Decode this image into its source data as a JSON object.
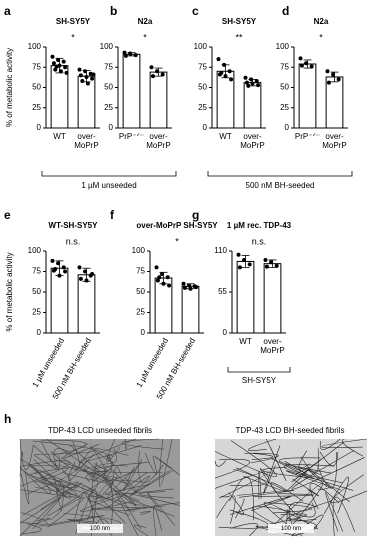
{
  "chart_data": [
    {
      "panel": "a",
      "type": "bar",
      "title": "SH-SY5Y",
      "ylabel": "% of metabolic activity",
      "significance": "*",
      "categories": [
        "WT",
        "over-MoPrP"
      ],
      "values": [
        77,
        64
      ],
      "errors": [
        9,
        7
      ],
      "points": [
        [
          88,
          84,
          82,
          80,
          77,
          75,
          72,
          70,
          68,
          76
        ],
        [
          72,
          70,
          67,
          65,
          63,
          61,
          58,
          55,
          66
        ]
      ],
      "ylim": [
        0,
        100
      ],
      "yticks": [
        0,
        25,
        50,
        75,
        100
      ]
    },
    {
      "panel": "b",
      "type": "bar",
      "title": "N2a",
      "significance": "*",
      "categories": [
        "PrP⁻ᐟ⁻",
        "over-MoPrP"
      ],
      "values": [
        91,
        69
      ],
      "errors": [
        2,
        5
      ],
      "points": [
        [
          93,
          92,
          90,
          89
        ],
        [
          75,
          70,
          66,
          64
        ]
      ],
      "ylim": [
        0,
        100
      ],
      "yticks": [
        0,
        25,
        50,
        75,
        100
      ]
    },
    {
      "panel": "c",
      "type": "bar",
      "title": "SH-SY5Y",
      "significance": "**",
      "categories": [
        "WT",
        "over-MoPrP"
      ],
      "values": [
        70,
        56
      ],
      "errors": [
        8,
        4
      ],
      "points": [
        [
          85,
          78,
          70,
          66,
          64,
          60,
          68
        ],
        [
          62,
          60,
          58,
          56,
          55,
          53,
          52
        ]
      ],
      "ylim": [
        0,
        100
      ],
      "yticks": [
        0,
        25,
        50,
        75,
        100
      ]
    },
    {
      "panel": "d",
      "type": "bar",
      "title": "N2a",
      "significance": "*",
      "categories": [
        "PrP⁻ᐟ⁻",
        "over-MoPrP"
      ],
      "values": [
        79,
        63
      ],
      "errors": [
        5,
        6
      ],
      "points": [
        [
          86,
          80,
          76,
          77
        ],
        [
          70,
          66,
          60,
          56
        ]
      ],
      "ylim": [
        0,
        100
      ],
      "yticks": [
        0,
        25,
        50,
        75,
        100
      ]
    },
    {
      "panel": "e",
      "type": "bar",
      "title": "WT-SH-SY5Y",
      "ylabel": "% of metabolic activity",
      "significance": "n.s.",
      "categories": [
        "1 µM unseeded",
        "500 nM BH-seeded"
      ],
      "values": [
        79,
        71
      ],
      "errors": [
        9,
        8
      ],
      "points": [
        [
          88,
          85,
          80,
          76,
          70,
          75,
          78
        ],
        [
          80,
          75,
          70,
          66,
          64,
          72
        ]
      ],
      "ylim": [
        0,
        100
      ],
      "yticks": [
        0,
        25,
        50,
        75,
        100
      ]
    },
    {
      "panel": "f",
      "type": "bar",
      "title": "over-MoPrP SH-SY5Y",
      "significance": "*",
      "categories": [
        "1 µM unseeded",
        "500 nM BH-seeded"
      ],
      "values": [
        67,
        57
      ],
      "errors": [
        7,
        3
      ],
      "points": [
        [
          80,
          72,
          68,
          64,
          60,
          58,
          68
        ],
        [
          60,
          58,
          57,
          55,
          54,
          56
        ]
      ],
      "ylim": [
        0,
        100
      ],
      "yticks": [
        0,
        25,
        50,
        75,
        100
      ]
    },
    {
      "panel": "g",
      "type": "bar",
      "title": "1 µM rec. TDP-43",
      "significance": "n.s.",
      "bracket": "SH-SY5Y",
      "categories": [
        "WT",
        "over-MoPrP"
      ],
      "values": [
        96,
        93
      ],
      "errors": [
        8,
        5
      ],
      "points": [
        [
          105,
          98,
          92,
          88
        ],
        [
          98,
          95,
          90,
          89
        ]
      ],
      "ylim": [
        0,
        110
      ],
      "yticks": [
        0,
        55,
        110
      ]
    }
  ],
  "groups": [
    {
      "label": "1 µM unseeded"
    },
    {
      "label": "500 nM BH-seeded"
    }
  ],
  "images": {
    "panel": "h",
    "items": [
      {
        "title": "TDP-43 LCD unseeded fibrils",
        "scale": "100 nm"
      },
      {
        "title": "TDP-43 LCD BH-seeded fibrils",
        "scale": "100 nm"
      }
    ]
  }
}
